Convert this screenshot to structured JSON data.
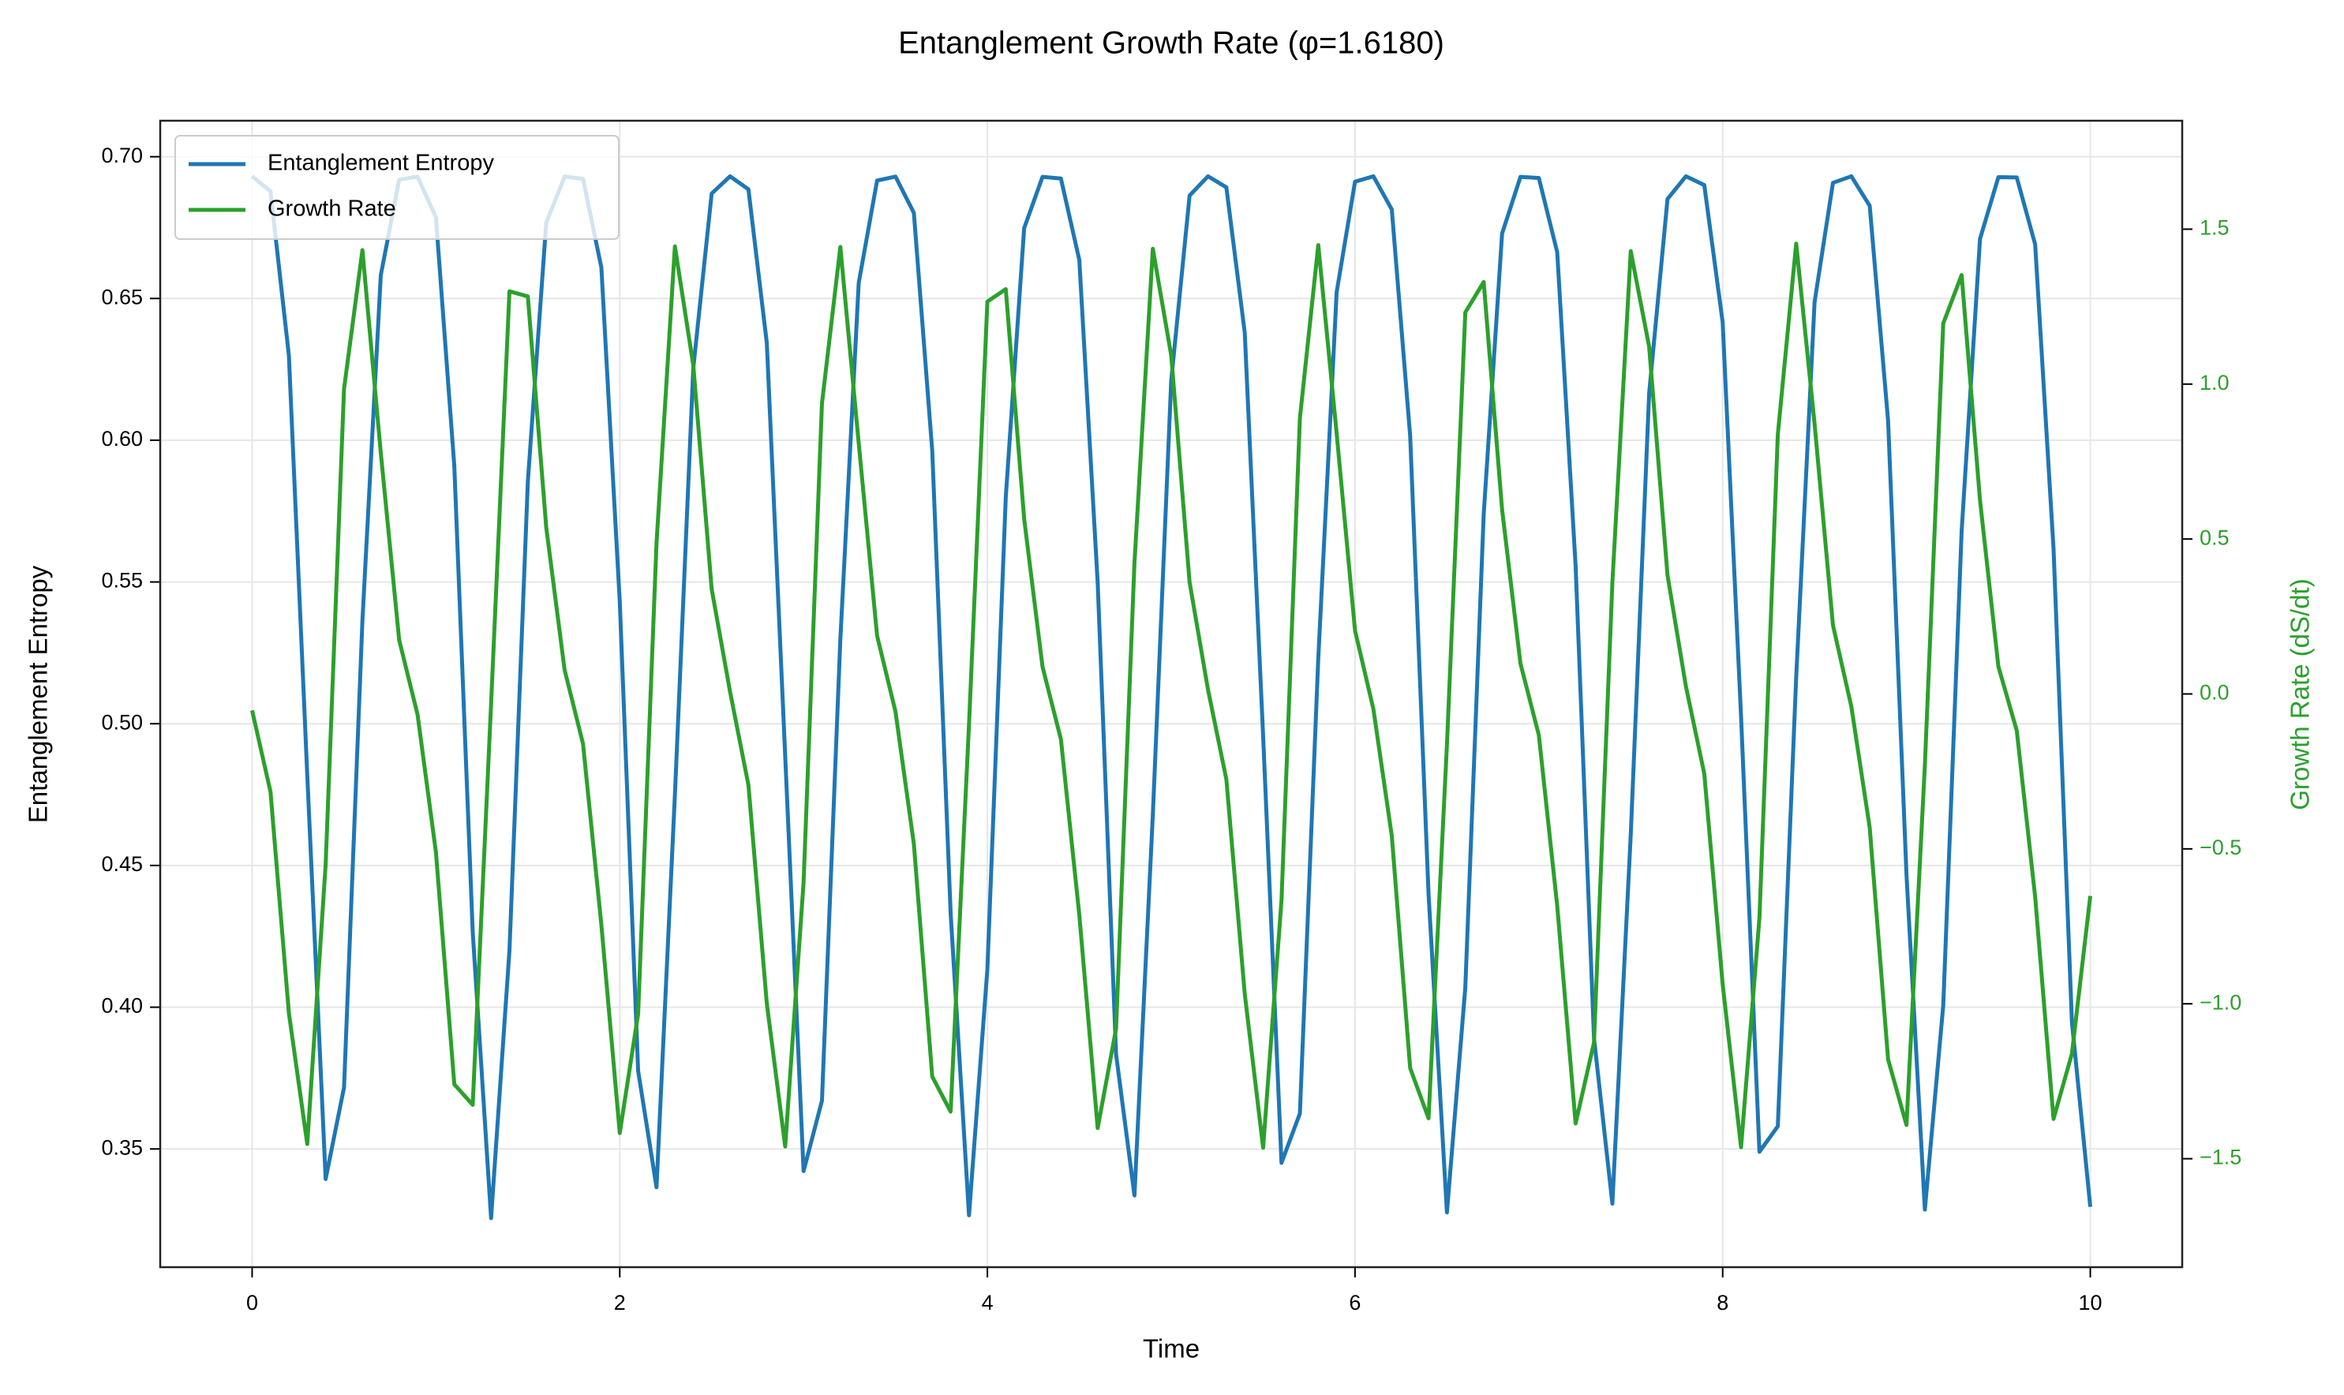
{
  "chart_data": {
    "type": "line",
    "title": "Entanglement Growth Rate (φ=1.6180)",
    "x_label": "Time",
    "y_label": "Entanglement Entropy",
    "y2_label": "Growth Rate (dS/dt)",
    "x": [
      0,
      0.1,
      0.2,
      0.3,
      0.4,
      0.5,
      0.6,
      0.7,
      0.8,
      0.9,
      1.0,
      1.1,
      1.2,
      1.3,
      1.4,
      1.5,
      1.6,
      1.7,
      1.8,
      1.9,
      2.0,
      2.1,
      2.2,
      2.3,
      2.4,
      2.5,
      2.6,
      2.7,
      2.8,
      2.9,
      3.0,
      3.1,
      3.2,
      3.3,
      3.4,
      3.5,
      3.6,
      3.7,
      3.8,
      3.9,
      4.0,
      4.1,
      4.2,
      4.3,
      4.4,
      4.5,
      4.6,
      4.7,
      4.8,
      4.9,
      5.0,
      5.1,
      5.2,
      5.3,
      5.4,
      5.5,
      5.6,
      5.7,
      5.8,
      5.9,
      6.0,
      6.1,
      6.2,
      6.3,
      6.4,
      6.5,
      6.6,
      6.7,
      6.8,
      6.9,
      7.0,
      7.1,
      7.2,
      7.3,
      7.4,
      7.5,
      7.6,
      7.7,
      7.8,
      7.9,
      8.0,
      8.1,
      8.2,
      8.3,
      8.4,
      8.5,
      8.6,
      8.7,
      8.8,
      8.9,
      9.0,
      9.1,
      9.2,
      9.3,
      9.4,
      9.5,
      9.6,
      9.7,
      9.8,
      9.9,
      10.0
    ],
    "series": [
      {
        "name": "Entanglement Entropy",
        "color": "#1f77b4",
        "values": [
          0.6931,
          0.6878,
          0.6299,
          0.4818,
          0.3394,
          0.3717,
          0.5363,
          0.6582,
          0.6919,
          0.693,
          0.6786,
          0.5908,
          0.4266,
          0.3256,
          0.4201,
          0.5855,
          0.6767,
          0.693,
          0.6922,
          0.6609,
          0.5431,
          0.3775,
          0.3365,
          0.4749,
          0.6254,
          0.687,
          0.6931,
          0.6885,
          0.6343,
          0.4887,
          0.3422,
          0.367,
          0.5297,
          0.6555,
          0.6916,
          0.693,
          0.6802,
          0.5962,
          0.4332,
          0.3266,
          0.4135,
          0.5799,
          0.6748,
          0.6929,
          0.6923,
          0.6636,
          0.5497,
          0.3834,
          0.3336,
          0.4678,
          0.621,
          0.6863,
          0.6931,
          0.6892,
          0.638,
          0.4957,
          0.3451,
          0.3625,
          0.523,
          0.6522,
          0.6912,
          0.6931,
          0.6814,
          0.6015,
          0.4399,
          0.3276,
          0.407,
          0.5739,
          0.6729,
          0.6929,
          0.6925,
          0.6663,
          0.5557,
          0.3891,
          0.3307,
          0.4609,
          0.6165,
          0.6851,
          0.6931,
          0.69,
          0.6416,
          0.5026,
          0.349,
          0.358,
          0.5164,
          0.6487,
          0.6908,
          0.6931,
          0.6827,
          0.6068,
          0.4468,
          0.3286,
          0.4006,
          0.5678,
          0.671,
          0.6928,
          0.6927,
          0.6691,
          0.5618,
          0.3948,
          0.3296
        ]
      },
      {
        "name": "Growth Rate",
        "color": "#2ca02c",
        "axis": "y2",
        "values": [
          -0.053,
          -0.316,
          -1.03,
          -1.4525,
          -0.5505,
          0.9845,
          1.4325,
          0.778,
          0.174,
          -0.0665,
          -0.511,
          -1.26,
          -1.326,
          -0.0325,
          1.2995,
          1.283,
          0.5375,
          0.0775,
          -0.1605,
          -0.7455,
          -1.417,
          -1.033,
          0.487,
          1.4445,
          1.0605,
          0.3385,
          0.0075,
          -0.294,
          -0.999,
          -1.4605,
          -0.6085,
          0.9375,
          1.4425,
          0.8095,
          0.1875,
          -0.057,
          -0.484,
          -1.235,
          -1.348,
          -0.0985,
          1.2665,
          1.3065,
          0.565,
          0.0875,
          -0.1465,
          -0.713,
          -1.401,
          -1.0805,
          0.422,
          1.437,
          1.0925,
          0.3605,
          0.0145,
          -0.2755,
          -0.9675,
          -1.4645,
          -0.666,
          0.8895,
          1.4485,
          0.841,
          0.2045,
          -0.049,
          -0.458,
          -1.2075,
          -1.3695,
          -0.1645,
          1.2315,
          1.3295,
          0.595,
          0.098,
          -0.133,
          -0.684,
          -1.386,
          -1.125,
          0.359,
          1.429,
          1.121,
          0.383,
          0.0245,
          -0.2575,
          -0.937,
          -1.463,
          -0.723,
          0.837,
          1.4535,
          0.872,
          0.222,
          -0.0405,
          -0.4315,
          -1.1795,
          -1.391,
          -0.231,
          1.196,
          1.352,
          0.625,
          0.0885,
          -0.1185,
          -0.6545,
          -1.3715,
          -1.161,
          -0.652
        ]
      }
    ],
    "xlim": [
      -0.5,
      10.5
    ],
    "ylim": [
      0.3083,
      0.7127
    ],
    "y2lim": [
      -1.85,
      1.85
    ],
    "xticks": [
      0,
      2,
      4,
      6,
      8,
      10
    ],
    "yticks": [
      0.35,
      {
        "value": 0.4,
        "label": "0.40"
      },
      0.45,
      {
        "value": 0.5,
        "label": "0.50"
      },
      0.55,
      {
        "value": 0.6,
        "label": "0.60"
      },
      0.65,
      {
        "value": 0.7,
        "label": "0.70"
      }
    ],
    "y2ticks": [
      {
        "value": -1.5,
        "label": "−1.5"
      },
      {
        "value": -1,
        "label": "−1.0"
      },
      {
        "value": -0.5,
        "label": "−0.5"
      },
      {
        "value": 0,
        "label": "0.0"
      },
      0.5,
      {
        "value": 1,
        "label": "1.0"
      },
      1.5
    ],
    "grid": true,
    "legend": "upper left"
  }
}
